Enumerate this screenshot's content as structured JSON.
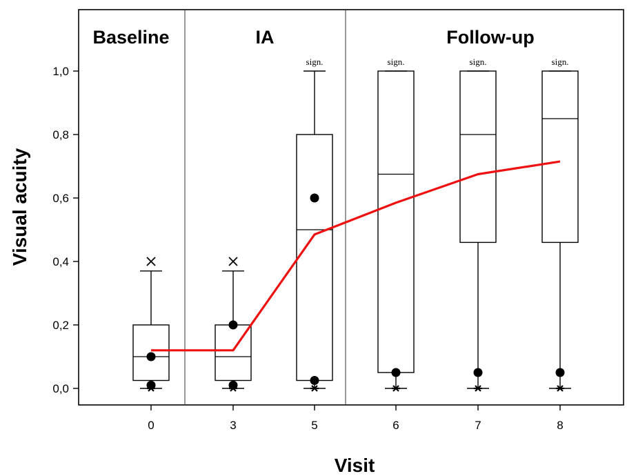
{
  "chart_data": {
    "type": "box",
    "xlabel": "Visit",
    "ylabel": "Visual acuity",
    "ylim": [
      0,
      1.05
    ],
    "y_ticks": [
      "0,0",
      "0,2",
      "0,4",
      "0,6",
      "0,8",
      "1,0"
    ],
    "phases": [
      {
        "label": "Baseline",
        "visits": [
          "0"
        ]
      },
      {
        "label": "IA",
        "visits": [
          "3",
          "5"
        ]
      },
      {
        "label": "Follow-up",
        "visits": [
          "6",
          "7",
          "8"
        ]
      }
    ],
    "categories": [
      "0",
      "3",
      "5",
      "6",
      "7",
      "8"
    ],
    "boxes": [
      {
        "visit": "0",
        "q1": 0.025,
        "median": 0.1,
        "q3": 0.2,
        "whisker_low": 0.0,
        "whisker_high": 0.37,
        "outliers_x": [
          0.4
        ],
        "dots": [
          0.1,
          0.01
        ],
        "stars": [
          0.0
        ],
        "sign": ""
      },
      {
        "visit": "3",
        "q1": 0.025,
        "median": 0.1,
        "q3": 0.2,
        "whisker_low": 0.0,
        "whisker_high": 0.37,
        "outliers_x": [
          0.4
        ],
        "dots": [
          0.2,
          0.01
        ],
        "stars": [
          0.0
        ],
        "sign": ""
      },
      {
        "visit": "5",
        "q1": 0.025,
        "median": 0.5,
        "q3": 0.8,
        "whisker_low": 0.0,
        "whisker_high": 1.0,
        "outliers_x": [],
        "dots": [
          0.6,
          0.025
        ],
        "stars": [
          0.0
        ],
        "sign": "sign."
      },
      {
        "visit": "6",
        "q1": 0.05,
        "median": 0.675,
        "q3": 1.0,
        "whisker_low": 0.0,
        "whisker_high": 1.0,
        "outliers_x": [],
        "dots": [
          0.05
        ],
        "stars": [
          0.0
        ],
        "sign": "sign."
      },
      {
        "visit": "7",
        "q1": 0.46,
        "median": 0.8,
        "q3": 1.0,
        "whisker_low": 0.0,
        "whisker_high": 1.0,
        "outliers_x": [],
        "dots": [
          0.05
        ],
        "stars": [
          0.0
        ],
        "sign": "sign."
      },
      {
        "visit": "8",
        "q1": 0.46,
        "median": 0.85,
        "q3": 1.0,
        "whisker_low": 0.0,
        "whisker_high": 1.0,
        "outliers_x": [],
        "dots": [
          0.05
        ],
        "stars": [
          0.0
        ],
        "sign": "sign."
      }
    ],
    "mean_line": {
      "x": [
        "0",
        "3",
        "5",
        "6",
        "7",
        "8"
      ],
      "y": [
        0.12,
        0.12,
        0.485,
        0.585,
        0.675,
        0.715
      ],
      "color": "#ee1111"
    },
    "grid": false
  }
}
